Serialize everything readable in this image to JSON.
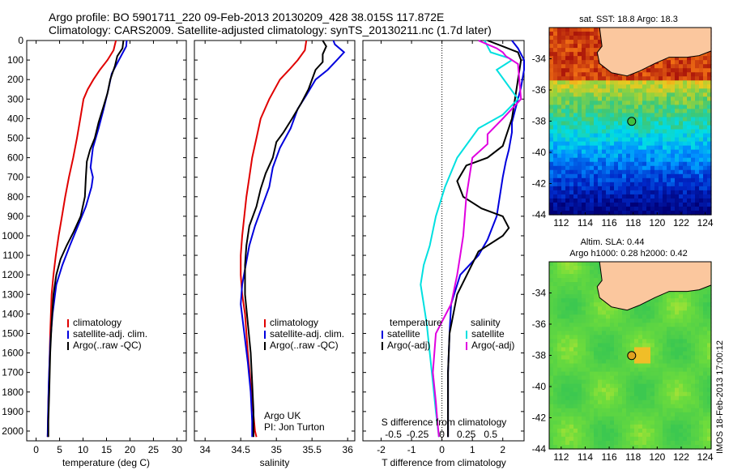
{
  "title": {
    "line1": "Argo profile: BO 5901711_220 09-Feb-2013 20130209_428 38.015S 117.872E",
    "line2": "Climatology: CARS2009. Satellite-adjusted climatology: synTS_20130211.nc (1.7d later)"
  },
  "credits": {
    "line1": "Argo UK",
    "line2": "PI: Jon Turton"
  },
  "side_label": "IMOS 18-Feb-2013 17:00:12",
  "chart_data": [
    {
      "type": "line",
      "name": "temperature",
      "xlabel": "temperature (deg C)",
      "xlim": [
        -2,
        32
      ],
      "ylim": [
        0,
        2050
      ],
      "y_inverted": true,
      "xticks": [
        0,
        5,
        10,
        15,
        20,
        25,
        30
      ],
      "yticks": [
        0,
        100,
        200,
        300,
        400,
        500,
        600,
        700,
        800,
        900,
        1000,
        1100,
        1200,
        1300,
        1400,
        1500,
        1600,
        1700,
        1800,
        1900,
        2000
      ],
      "legend": [
        "climatology",
        "satellite-adj. clim.",
        "Argo(..raw -QC)"
      ],
      "series": [
        {
          "name": "climatology",
          "color": "#e00000",
          "x": [
            17.0,
            16.5,
            15.2,
            13.6,
            12.2,
            11.0,
            10.1,
            9.4,
            8.7,
            7.9,
            7.0,
            6.2,
            5.5,
            4.8,
            4.2,
            3.7,
            3.3,
            3.0,
            2.8,
            2.6,
            2.5,
            2.45
          ],
          "y": [
            0,
            50,
            100,
            150,
            200,
            250,
            300,
            400,
            500,
            600,
            700,
            800,
            900,
            1000,
            1100,
            1200,
            1300,
            1500,
            1700,
            1850,
            2000,
            2030
          ]
        },
        {
          "name": "satellite-adj. clim.",
          "color": "#0000dd",
          "x": [
            19.3,
            19.2,
            18.3,
            17.2,
            16.1,
            15.4,
            14.4,
            13.3,
            12.1,
            11.6,
            12.1,
            11.8,
            10.6,
            8.9,
            7.2,
            5.6,
            4.3,
            3.5,
            3.0,
            2.7,
            2.5,
            2.45
          ],
          "y": [
            0,
            30,
            70,
            120,
            170,
            250,
            350,
            450,
            550,
            650,
            700,
            750,
            850,
            950,
            1050,
            1150,
            1250,
            1400,
            1550,
            1750,
            1950,
            2030
          ]
        },
        {
          "name": "Argo(..raw -QC)",
          "color": "#000000",
          "x": [
            18.6,
            18.4,
            17.3,
            16.8,
            15.8,
            15.2,
            14.2,
            13.3,
            12.5,
            11.5,
            10.8,
            10.6,
            10.4,
            9.5,
            8.0,
            6.5,
            5.2,
            4.3,
            3.7,
            3.3,
            3.0,
            2.8,
            2.6,
            2.6
          ],
          "y": [
            0,
            40,
            80,
            130,
            200,
            270,
            350,
            420,
            500,
            560,
            620,
            700,
            800,
            900,
            980,
            1050,
            1120,
            1200,
            1300,
            1450,
            1600,
            1800,
            1950,
            2030
          ]
        }
      ]
    },
    {
      "type": "line",
      "name": "salinity",
      "xlabel": "salinity",
      "xlim": [
        33.85,
        36.1
      ],
      "ylim": [
        0,
        2050
      ],
      "y_inverted": true,
      "xticks": [
        34,
        34.5,
        35,
        35.5,
        36
      ],
      "legend": [
        "climatology",
        "satellite-adj. clim.",
        "Argo(..raw -QC)"
      ],
      "series": [
        {
          "name": "climatology",
          "color": "#e00000",
          "x": [
            35.42,
            35.4,
            35.3,
            35.18,
            35.05,
            34.9,
            34.78,
            34.72,
            34.66,
            34.62,
            34.58,
            34.55,
            34.52,
            34.5,
            34.5,
            34.52,
            34.56,
            34.6,
            34.65,
            34.7,
            34.72
          ],
          "y": [
            0,
            50,
            100,
            150,
            200,
            300,
            400,
            500,
            600,
            700,
            800,
            900,
            1000,
            1100,
            1200,
            1300,
            1400,
            1600,
            1800,
            2000,
            2030
          ]
        },
        {
          "name": "satellite-adj. clim.",
          "color": "#0000dd",
          "x": [
            35.8,
            35.82,
            35.95,
            35.85,
            35.72,
            35.55,
            35.42,
            35.3,
            35.2,
            35.05,
            34.95,
            34.9,
            34.8,
            34.7,
            34.62,
            34.57,
            34.52,
            34.5,
            34.55,
            34.6,
            34.64,
            34.66,
            34.66
          ],
          "y": [
            0,
            20,
            60,
            100,
            150,
            200,
            280,
            350,
            450,
            550,
            650,
            750,
            850,
            950,
            1050,
            1150,
            1250,
            1350,
            1500,
            1650,
            1800,
            1950,
            2030
          ]
        },
        {
          "name": "Argo(..raw -QC)",
          "color": "#000000",
          "x": [
            35.65,
            35.7,
            35.65,
            35.65,
            35.55,
            35.45,
            35.35,
            35.22,
            35.1,
            35.0,
            34.95,
            34.85,
            34.78,
            34.72,
            34.62,
            34.58,
            34.56,
            34.56,
            34.6,
            34.64,
            34.66,
            34.68,
            34.68
          ],
          "y": [
            0,
            30,
            70,
            110,
            150,
            250,
            320,
            400,
            470,
            520,
            600,
            680,
            760,
            850,
            950,
            1050,
            1150,
            1300,
            1450,
            1600,
            1750,
            1900,
            2030
          ]
        }
      ]
    },
    {
      "type": "line",
      "name": "difference",
      "xlabel": "T difference from climatology",
      "xlabel_top": "S difference from climatology",
      "xlim": [
        -2.6,
        2.7
      ],
      "xticks": [
        -2,
        -1,
        0,
        1,
        2
      ],
      "xticks_s": [
        "-0.5",
        "-0.25",
        "0",
        "0.25",
        "0.5"
      ],
      "ylim": [
        0,
        2050
      ],
      "y_inverted": true,
      "legend": {
        "temperature": "temperature",
        "salinity": "salinity",
        "sat_label": "satellite",
        "argo_label": "Argo(-adj)"
      },
      "series": [
        {
          "name": "temperature satellite",
          "color": "#0000dd",
          "x": [
            2.3,
            2.5,
            2.7,
            2.7,
            2.6,
            2.5,
            2.4,
            2.3,
            2.3,
            2.2,
            2.1,
            2.0,
            1.8,
            1.5,
            1.2,
            0.6,
            0.3,
            0.25,
            0.2,
            0.2,
            0.2
          ],
          "y": [
            0,
            40,
            100,
            150,
            240,
            300,
            360,
            420,
            470,
            560,
            620,
            700,
            900,
            1020,
            1100,
            1200,
            1350,
            1500,
            1700,
            1900,
            2030
          ]
        },
        {
          "name": "temperature Argo",
          "color": "#000000",
          "x": [
            1.5,
            2.0,
            2.5,
            2.6,
            2.5,
            2.3,
            2.0,
            1.5,
            0.8,
            0.5,
            0.7,
            1.3,
            2.0,
            2.2,
            2.0,
            1.2,
            0.5,
            0.25,
            0.2,
            0.2,
            0.2
          ],
          "y": [
            0,
            30,
            60,
            100,
            200,
            400,
            540,
            600,
            640,
            720,
            800,
            860,
            900,
            960,
            1000,
            1080,
            1300,
            1500,
            1700,
            1900,
            2030
          ]
        },
        {
          "name": "salinity satellite",
          "color": "#00e0e0",
          "x": [
            1.4,
            1.5,
            1.6,
            2.2,
            2.3,
            1.8,
            2.5,
            2.0,
            1.2,
            0.5,
            0.1,
            -0.2,
            -0.4,
            -0.6,
            -0.7,
            -0.6,
            -0.5,
            -0.4,
            -0.3,
            -0.2,
            -0.1
          ],
          "y": [
            0,
            30,
            60,
            90,
            100,
            150,
            300,
            380,
            450,
            600,
            750,
            900,
            1050,
            1150,
            1250,
            1350,
            1450,
            1600,
            1750,
            1900,
            2030
          ]
        },
        {
          "name": "salinity Argo",
          "color": "#e000e0",
          "x": [
            1.2,
            1.5,
            1.8,
            2.0,
            2.1,
            2.5,
            2.6,
            2.0,
            1.5,
            1.5,
            1.0,
            0.8,
            0.7,
            0.6,
            0.5,
            0.3,
            -0.2,
            -0.3,
            -0.2,
            -0.15,
            -0.1
          ],
          "y": [
            0,
            20,
            40,
            60,
            80,
            120,
            300,
            400,
            480,
            530,
            600,
            800,
            1000,
            1100,
            1200,
            1350,
            1500,
            1700,
            1850,
            1950,
            2030
          ]
        }
      ]
    },
    {
      "type": "heatmap",
      "name": "sst_map",
      "title": "sat. SST: 18.8 Argo: 18.3",
      "xlim": [
        111,
        124.5
      ],
      "ylim": [
        -44,
        -32
      ],
      "xticks": [
        112,
        114,
        116,
        118,
        120,
        122,
        124
      ],
      "yticks": [
        -34,
        -36,
        -38,
        -40,
        -42,
        -44
      ],
      "marker": {
        "lon": 117.872,
        "lat": -38.015
      }
    },
    {
      "type": "heatmap",
      "name": "sla_map",
      "title_line1": "Altim. SLA: 0.44",
      "title_line2": "Argo h1000: 0.28 h2000: 0.42",
      "xlim": [
        111,
        124.5
      ],
      "ylim": [
        -44,
        -32
      ],
      "xticks": [
        112,
        114,
        116,
        118,
        120,
        122,
        124
      ],
      "yticks": [
        -34,
        -36,
        -38,
        -40,
        -42,
        -44
      ],
      "marker": {
        "lon": 117.872,
        "lat": -38.015
      }
    }
  ]
}
